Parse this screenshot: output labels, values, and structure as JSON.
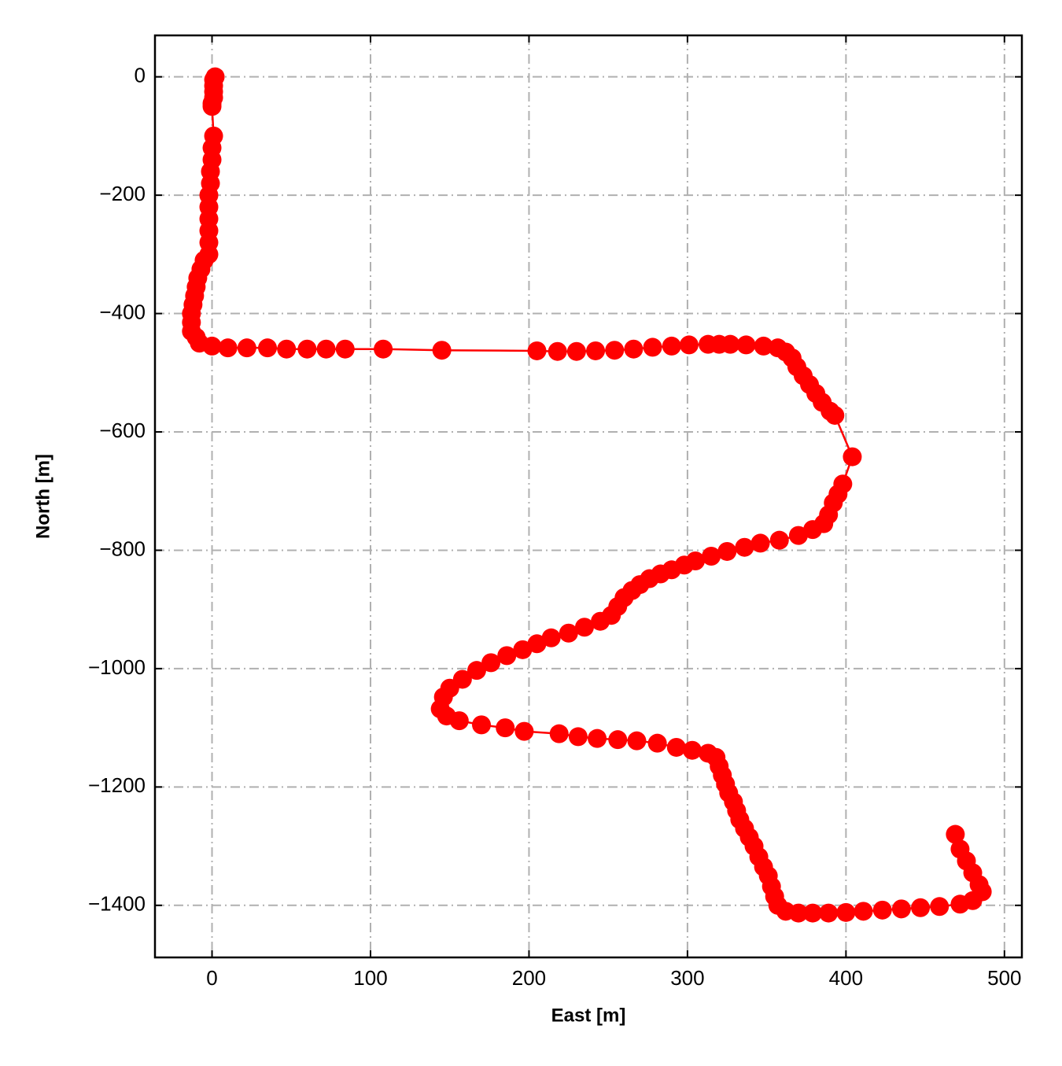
{
  "chart_data": {
    "type": "line",
    "x_label": "East [m]",
    "y_label": "North [m]",
    "color": "#ff0000",
    "grid": true,
    "xlim": [
      -36,
      511
    ],
    "ylim": [
      -1488,
      70
    ],
    "xticks": [
      0,
      100,
      200,
      300,
      400,
      500
    ],
    "yticks": [
      0,
      {
        "value": -200,
        "label": "−200"
      },
      {
        "value": -400,
        "label": "−400"
      },
      {
        "value": -600,
        "label": "−600"
      },
      {
        "value": -800,
        "label": "−800"
      },
      {
        "value": -1000,
        "label": "−1000"
      },
      {
        "value": -1200,
        "label": "−1200"
      },
      {
        "value": -1400,
        "label": "−1400"
      }
    ],
    "x": [
      2,
      1,
      1,
      1,
      1,
      0,
      0,
      1,
      0,
      0,
      -1,
      -1,
      -2,
      -2,
      -2,
      -2,
      -2,
      -2,
      -5,
      -7,
      -9,
      -10,
      -11,
      -12,
      -13,
      -13,
      -13,
      -10,
      -8,
      0,
      10,
      22,
      35,
      47,
      60,
      72,
      84,
      108,
      145,
      205,
      218,
      230,
      242,
      254,
      266,
      278,
      290,
      301,
      313,
      320,
      327,
      337,
      348,
      357,
      362,
      366,
      369,
      373,
      377,
      381,
      385,
      390,
      393,
      404,
      398,
      395,
      392,
      389,
      386,
      379,
      370,
      358,
      346,
      336,
      325,
      315,
      305,
      298,
      290,
      283,
      276,
      270,
      265,
      260,
      256,
      252,
      245,
      235,
      225,
      214,
      205,
      196,
      186,
      176,
      167,
      158,
      150,
      146,
      144,
      148,
      156,
      170,
      185,
      197,
      219,
      231,
      243,
      256,
      268,
      281,
      293,
      303,
      313,
      318,
      320,
      322,
      324,
      326,
      329,
      331,
      333,
      336,
      339,
      342,
      345,
      348,
      351,
      353,
      355,
      357,
      362,
      370,
      379,
      389,
      400,
      411,
      423,
      435,
      447,
      459,
      472,
      480,
      486,
      484,
      480,
      476,
      472,
      469
    ],
    "values": [
      0,
      -5,
      -15,
      -25,
      -35,
      -45,
      -50,
      -100,
      -120,
      -140,
      -160,
      -180,
      -200,
      -220,
      -240,
      -260,
      -280,
      -300,
      -310,
      -325,
      -340,
      -355,
      -370,
      -385,
      -400,
      -415,
      -430,
      -440,
      -450,
      -455,
      -458,
      -458,
      -458,
      -460,
      -460,
      -460,
      -460,
      -460,
      -462,
      -463,
      -464,
      -464,
      -463,
      -462,
      -460,
      -457,
      -455,
      -453,
      -452,
      -452,
      -452,
      -453,
      -455,
      -458,
      -465,
      -475,
      -490,
      -505,
      -520,
      -535,
      -550,
      -565,
      -572,
      -642,
      -688,
      -705,
      -720,
      -740,
      -755,
      -765,
      -775,
      -783,
      -788,
      -795,
      -802,
      -810,
      -818,
      -825,
      -833,
      -840,
      -848,
      -858,
      -868,
      -880,
      -895,
      -910,
      -920,
      -930,
      -940,
      -948,
      -958,
      -968,
      -978,
      -990,
      -1003,
      -1018,
      -1033,
      -1048,
      -1068,
      -1080,
      -1088,
      -1095,
      -1100,
      -1106,
      -1110,
      -1115,
      -1118,
      -1120,
      -1122,
      -1126,
      -1133,
      -1138,
      -1143,
      -1150,
      -1165,
      -1180,
      -1195,
      -1210,
      -1225,
      -1240,
      -1255,
      -1270,
      -1285,
      -1300,
      -1318,
      -1335,
      -1350,
      -1368,
      -1385,
      -1400,
      -1410,
      -1413,
      -1413,
      -1413,
      -1412,
      -1410,
      -1408,
      -1406,
      -1404,
      -1402,
      -1398,
      -1392,
      -1377,
      -1365,
      -1345,
      -1325,
      -1305,
      -1280
    ]
  }
}
